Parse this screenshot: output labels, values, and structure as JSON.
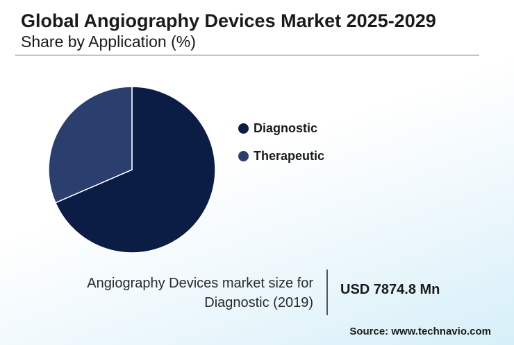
{
  "header": {
    "title": "Global Angiography Devices Market 2025-2029",
    "subtitle": "Share by Application (%)"
  },
  "chart_data": {
    "type": "pie",
    "title": "Global Angiography Devices Market 2025-2029",
    "subtitle": "Share by Application (%)",
    "categories": [
      "Diagnostic",
      "Therapeutic"
    ],
    "values": [
      68.5,
      31.5
    ],
    "colors": [
      "#0b1c45",
      "#2b3f6e"
    ],
    "legend_placement": "right"
  },
  "info": {
    "label_line1": "Angiography Devices market size for",
    "label_line2": "Diagnostic (2019)",
    "value": "USD 7874.8 Mn"
  },
  "source": "Source: www.technavio.com"
}
